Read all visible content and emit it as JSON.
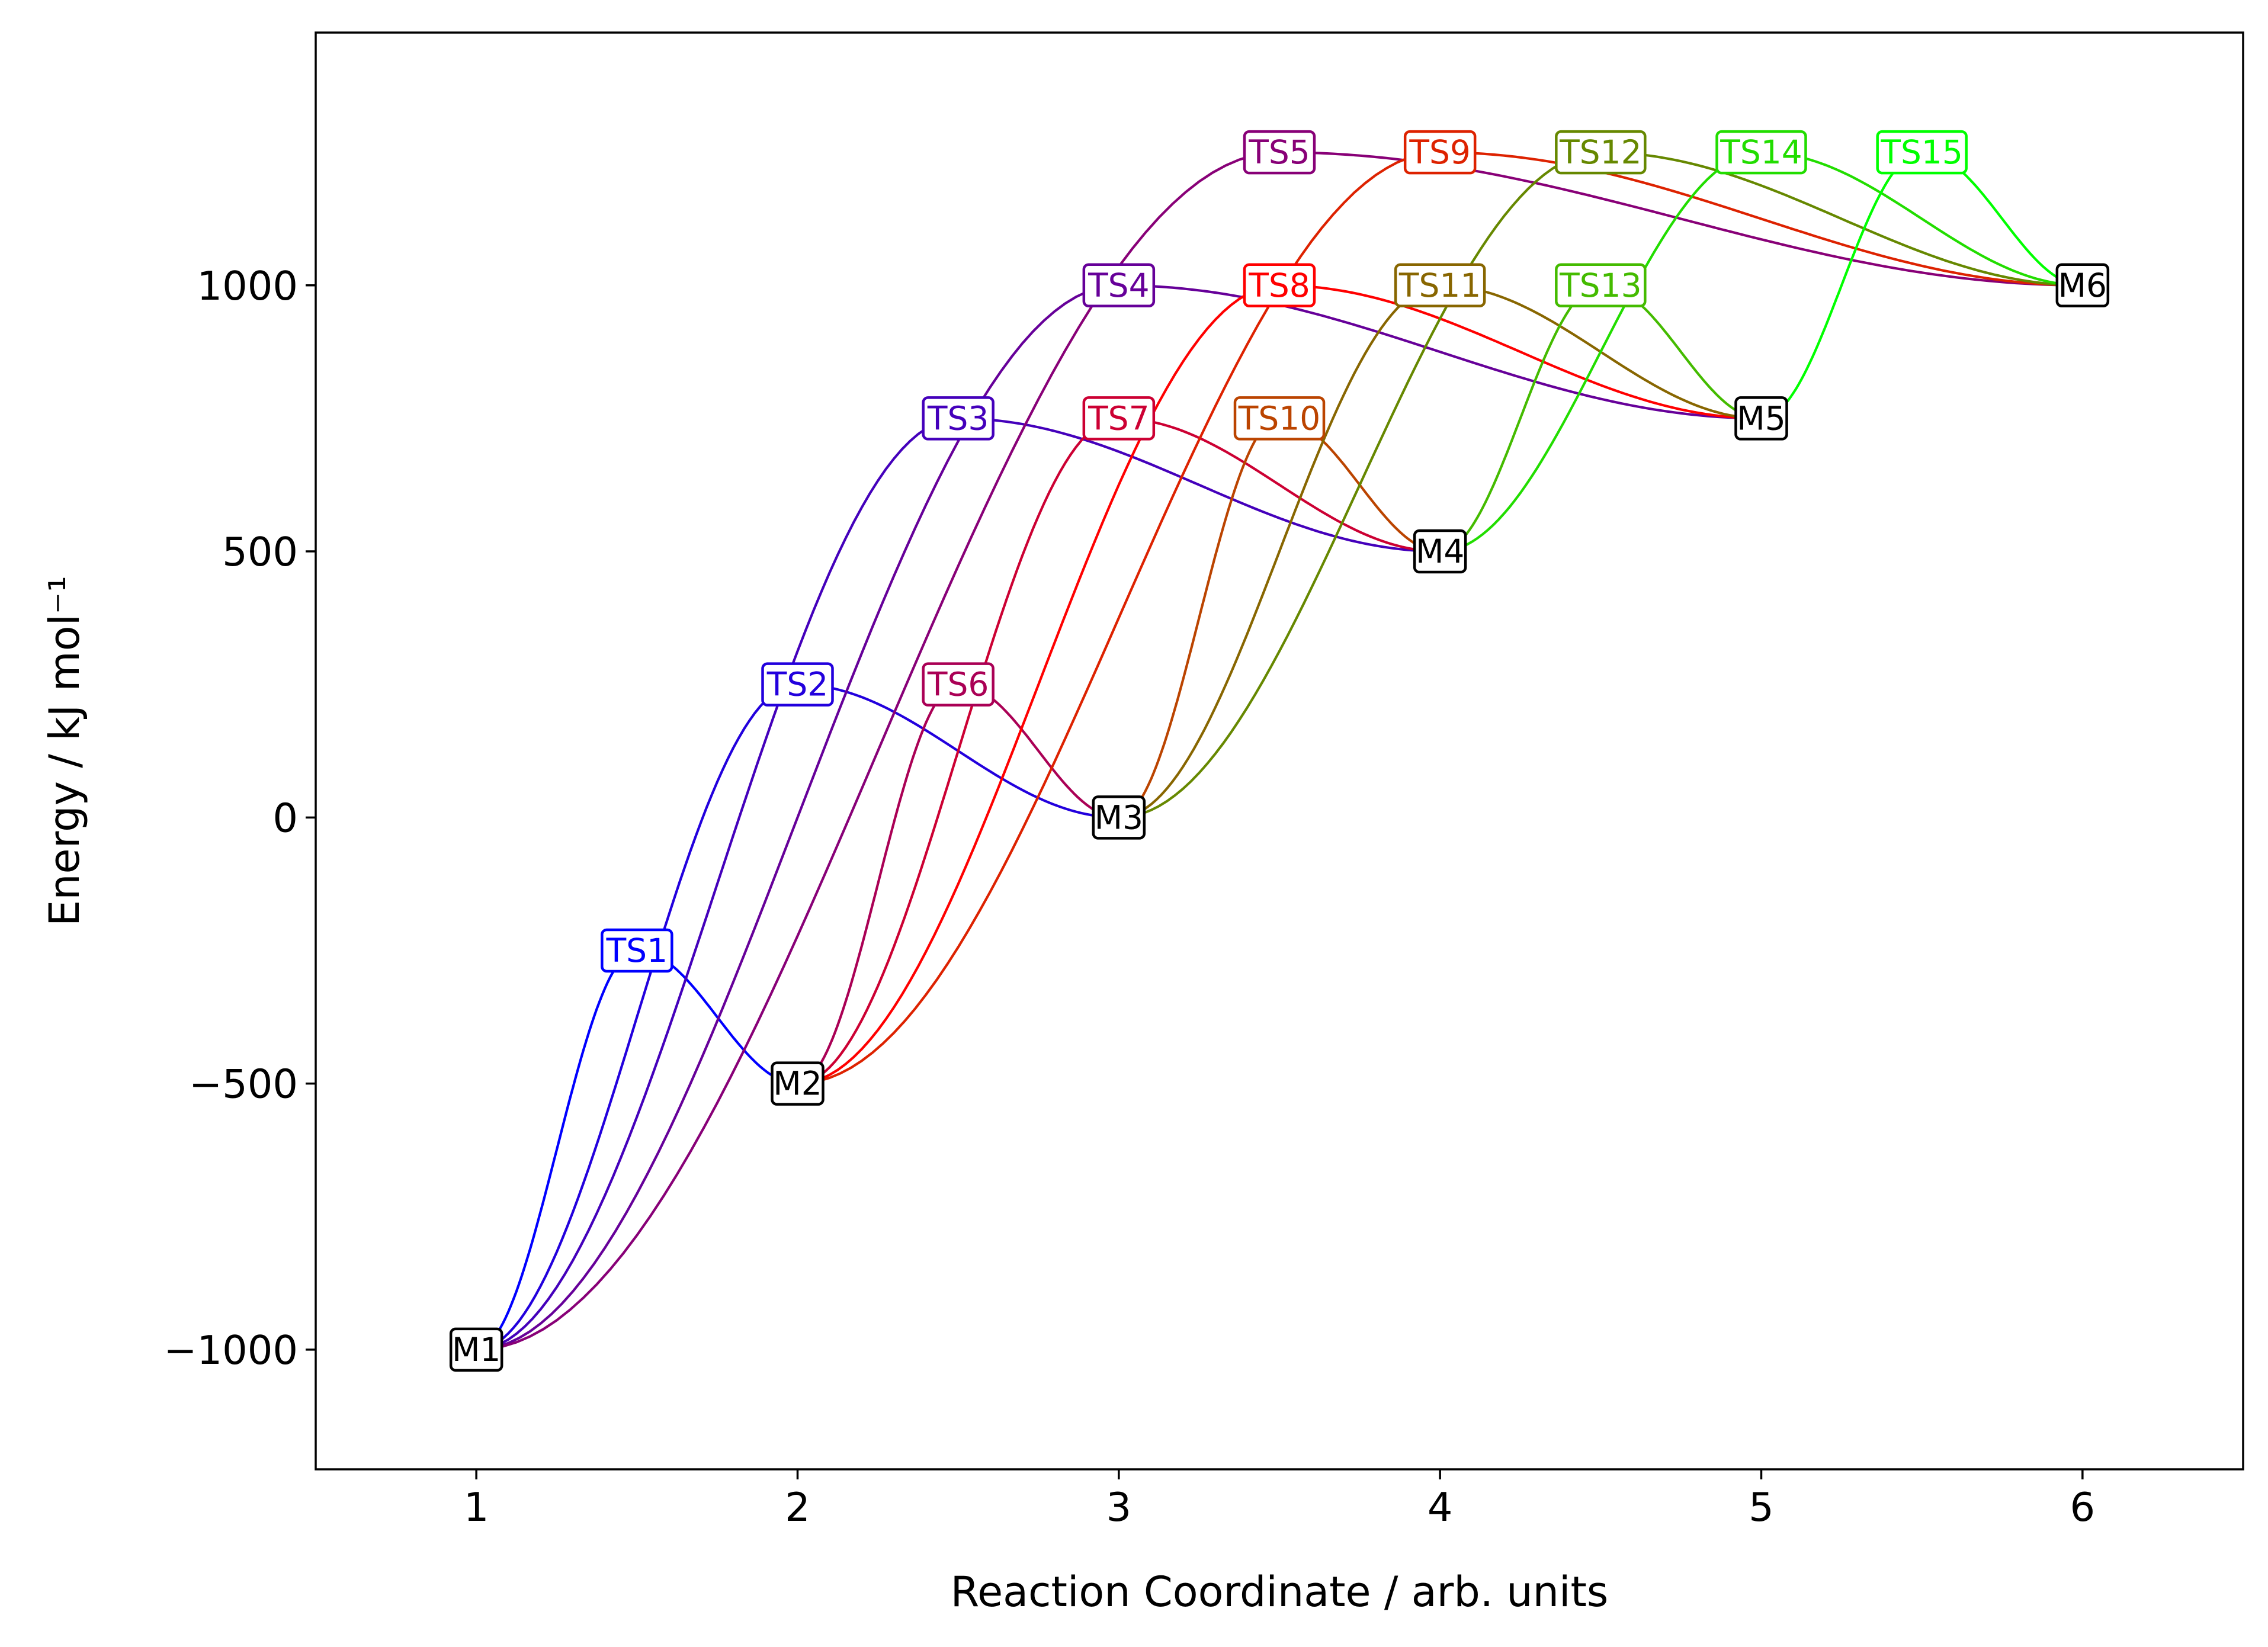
{
  "chart_data": {
    "type": "line",
    "title": "",
    "xlabel": "Reaction Coordinate / arb. units",
    "ylabel": "Energy / kJ mol⁻¹",
    "xlim": [
      0.5,
      6.5
    ],
    "ylim": [
      -1225,
      1475
    ],
    "xticks": [
      1,
      2,
      3,
      4,
      5,
      6
    ],
    "yticks": [
      -1000,
      -500,
      0,
      500,
      1000
    ],
    "ytick_labels": [
      "−1000",
      "−500",
      "0",
      "500",
      "1000"
    ],
    "grid": false,
    "legend": "none",
    "minima": [
      {
        "label": "M1",
        "x": 1,
        "y": -1000
      },
      {
        "label": "M2",
        "x": 2,
        "y": -500
      },
      {
        "label": "M3",
        "x": 3,
        "y": 0
      },
      {
        "label": "M4",
        "x": 4,
        "y": 500
      },
      {
        "label": "M5",
        "x": 5,
        "y": 750
      },
      {
        "label": "M6",
        "x": 6,
        "y": 1000
      }
    ],
    "transition_states": [
      {
        "label": "TS1",
        "x": 1.5,
        "y": -250,
        "from": "M1",
        "to": "M2",
        "color": "#0000ff"
      },
      {
        "label": "TS2",
        "x": 2.0,
        "y": 250,
        "from": "M1",
        "to": "M3",
        "color": "#2200dd"
      },
      {
        "label": "TS3",
        "x": 2.5,
        "y": 750,
        "from": "M1",
        "to": "M4",
        "color": "#4400bb"
      },
      {
        "label": "TS4",
        "x": 3.0,
        "y": 1000,
        "from": "M1",
        "to": "M5",
        "color": "#660099"
      },
      {
        "label": "TS5",
        "x": 3.5,
        "y": 1250,
        "from": "M1",
        "to": "M6",
        "color": "#880077"
      },
      {
        "label": "TS6",
        "x": 2.5,
        "y": 250,
        "from": "M2",
        "to": "M3",
        "color": "#aa0055"
      },
      {
        "label": "TS7",
        "x": 3.0,
        "y": 750,
        "from": "M2",
        "to": "M4",
        "color": "#cc0033"
      },
      {
        "label": "TS8",
        "x": 3.5,
        "y": 1000,
        "from": "M2",
        "to": "M5",
        "color": "#ff0000"
      },
      {
        "label": "TS9",
        "x": 4.0,
        "y": 1250,
        "from": "M2",
        "to": "M6",
        "color": "#dd2200"
      },
      {
        "label": "TS10",
        "x": 3.5,
        "y": 750,
        "from": "M3",
        "to": "M4",
        "color": "#bb4400"
      },
      {
        "label": "TS11",
        "x": 4.0,
        "y": 1000,
        "from": "M3",
        "to": "M5",
        "color": "#886600"
      },
      {
        "label": "TS12",
        "x": 4.5,
        "y": 1250,
        "from": "M3",
        "to": "M6",
        "color": "#668800"
      },
      {
        "label": "TS13",
        "x": 4.5,
        "y": 1000,
        "from": "M4",
        "to": "M5",
        "color": "#44bb00"
      },
      {
        "label": "TS14",
        "x": 5.0,
        "y": 1250,
        "from": "M4",
        "to": "M6",
        "color": "#22dd00"
      },
      {
        "label": "TS15",
        "x": 5.5,
        "y": 1250,
        "from": "M5",
        "to": "M6",
        "color": "#00ff00"
      }
    ]
  }
}
